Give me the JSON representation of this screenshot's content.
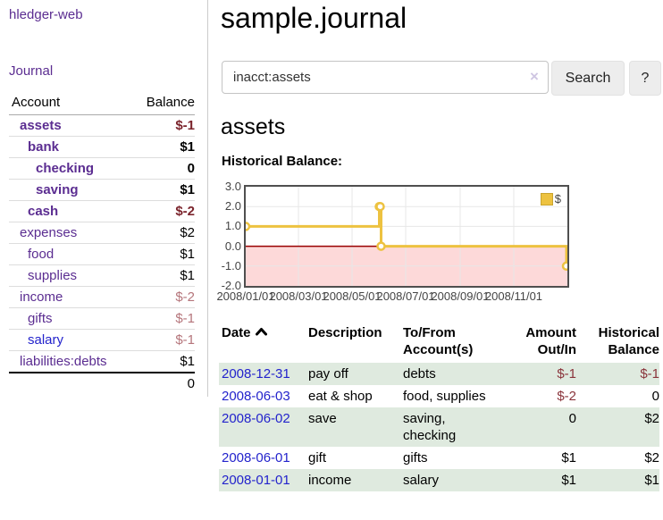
{
  "brand": {
    "label": "hledger-web"
  },
  "nav": {
    "journal_label": "Journal"
  },
  "sidebar": {
    "header": {
      "account": "Account",
      "balance": "Balance"
    },
    "accounts": [
      {
        "name": "assets",
        "balance": "$-1"
      },
      {
        "name": "bank",
        "balance": "$1"
      },
      {
        "name": "checking",
        "balance": "0"
      },
      {
        "name": "saving",
        "balance": "$1"
      },
      {
        "name": "cash",
        "balance": "$-2"
      },
      {
        "name": "expenses",
        "balance": "$2"
      },
      {
        "name": "food",
        "balance": "$1"
      },
      {
        "name": "supplies",
        "balance": "$1"
      },
      {
        "name": "income",
        "balance": "$-2"
      },
      {
        "name": "gifts",
        "balance": "$-1"
      },
      {
        "name": "salary",
        "balance": "$-1"
      },
      {
        "name": "liabilities:debts",
        "balance": "$1"
      }
    ],
    "total": "0"
  },
  "header": {
    "title": "sample.journal"
  },
  "search": {
    "value": "inacct:assets",
    "clear_label": "×",
    "button_label": "Search",
    "help_label": "?"
  },
  "account_page": {
    "heading": "assets",
    "chart_label": "Historical Balance:"
  },
  "chart_data": {
    "type": "line",
    "title": "Historical Balance",
    "step": true,
    "xlim": [
      "2008-01-01",
      "2009-01-01"
    ],
    "ylim": [
      -2,
      3
    ],
    "grid": true,
    "zero_line": true,
    "negative_region_shaded": true,
    "legend": {
      "label": "$",
      "position": "top-right"
    },
    "colors": {
      "line": "#EDC240",
      "marker_fill": "#ffffff",
      "grid": "#e7e7e7",
      "zero_line": "#990000",
      "negative_fill": "#fdd9d9",
      "border": "#4f4f4f"
    },
    "yticks": [
      {
        "v": 3,
        "label": "3.0"
      },
      {
        "v": 2,
        "label": "2.0"
      },
      {
        "v": 1,
        "label": "1.0"
      },
      {
        "v": 0,
        "label": "0.0"
      },
      {
        "v": -1,
        "label": "-1.0"
      },
      {
        "v": -2,
        "label": "-2.0"
      }
    ],
    "xticks": [
      {
        "date": "2008-01-01",
        "label": "2008/01/01"
      },
      {
        "date": "2008-03-01",
        "label": "2008/03/01"
      },
      {
        "date": "2008-05-01",
        "label": "2008/05/01"
      },
      {
        "date": "2008-07-01",
        "label": "2008/07/01"
      },
      {
        "date": "2008-09-01",
        "label": "2008/09/01"
      },
      {
        "date": "2008-11-01",
        "label": "2008/11/01"
      }
    ],
    "series": [
      {
        "name": "$",
        "points": [
          [
            "2008-01-01",
            1
          ],
          [
            "2008-06-01",
            2
          ],
          [
            "2008-06-02",
            2
          ],
          [
            "2008-06-03",
            0
          ],
          [
            "2008-12-31",
            -1
          ]
        ]
      }
    ]
  },
  "register": {
    "headers": {
      "date": "Date",
      "description": "Description",
      "accounts": "To/From Account(s)",
      "amount": "Amount Out/In",
      "balance": "Historical Balance"
    },
    "rows": [
      {
        "date": "2008-12-31",
        "description": "pay off",
        "accounts": "debts",
        "amount": "$-1",
        "balance": "$-1"
      },
      {
        "date": "2008-06-03",
        "description": "eat & shop",
        "accounts": "food, supplies",
        "amount": "$-2",
        "balance": "0"
      },
      {
        "date": "2008-06-02",
        "description": "save",
        "accounts": "saving, checking",
        "amount": "0",
        "balance": "$2"
      },
      {
        "date": "2008-06-01",
        "description": "gift",
        "accounts": "gifts",
        "amount": "$1",
        "balance": "$2"
      },
      {
        "date": "2008-01-01",
        "description": "income",
        "accounts": "salary",
        "amount": "$1",
        "balance": "$1"
      }
    ]
  }
}
